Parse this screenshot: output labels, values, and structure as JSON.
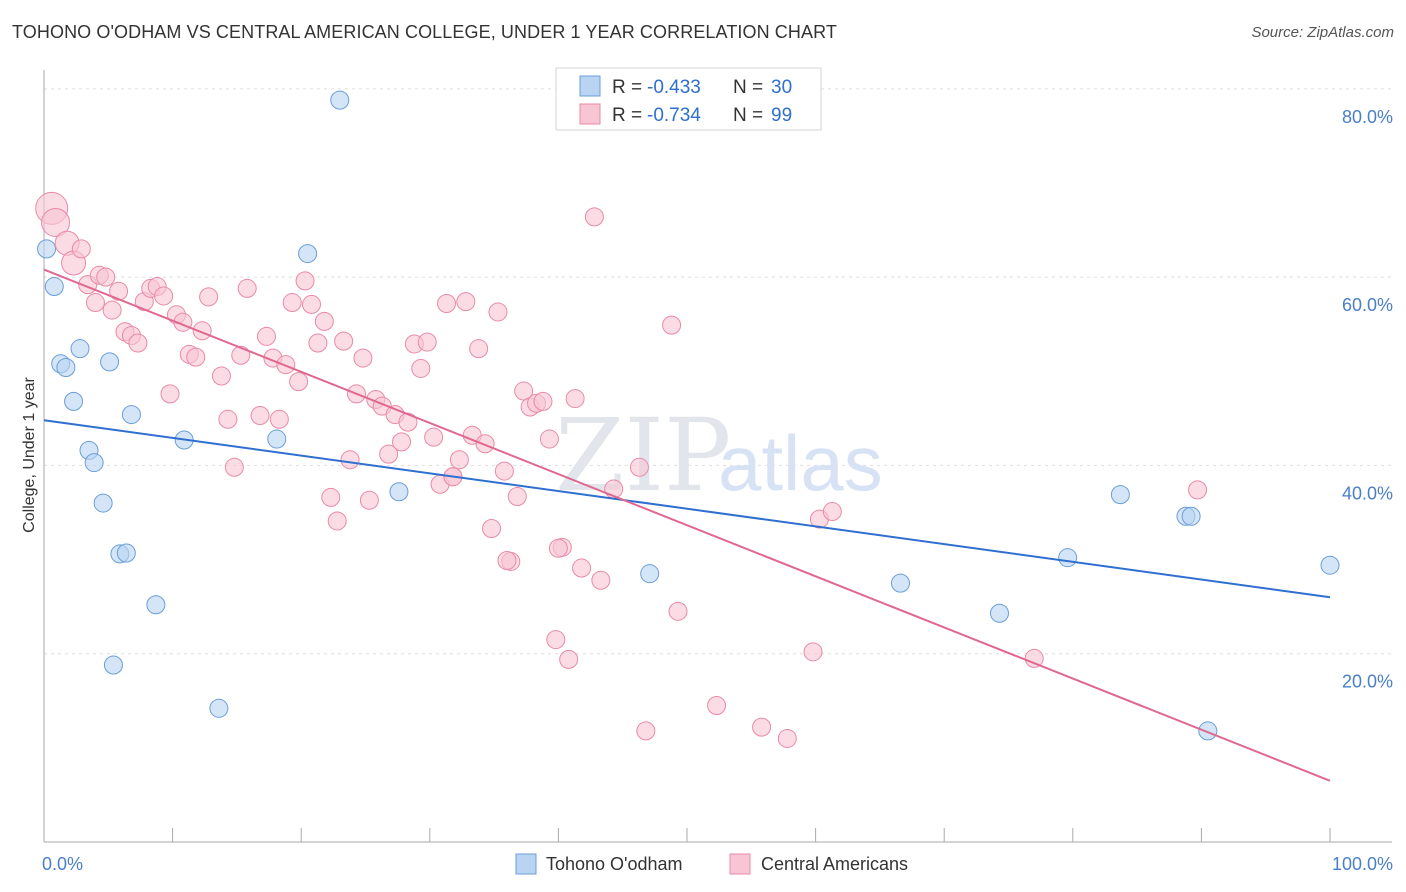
{
  "header": {
    "title": "TOHONO O'ODHAM VS CENTRAL AMERICAN COLLEGE, UNDER 1 YEAR CORRELATION CHART",
    "source": "Source: ZipAtlas.com"
  },
  "watermark": {
    "zip": "ZIP",
    "atlas": "atlas"
  },
  "legend": {
    "items": [
      {
        "r_label": "R =",
        "r_value": "-0.433",
        "n_label": "N =",
        "n_value": "30",
        "color": "#b9d3f3"
      },
      {
        "r_label": "R =",
        "r_value": "-0.734",
        "n_label": "N =",
        "n_value": "99",
        "color": "#f8c5d4"
      }
    ]
  },
  "chart_data": {
    "type": "scatter",
    "title": "TOHONO O'ODHAM VS CENTRAL AMERICAN COLLEGE, UNDER 1 YEAR CORRELATION CHART",
    "xlabel": "",
    "ylabel": "College, Under 1 year",
    "xlim": [
      0,
      100
    ],
    "ylim": [
      0,
      82
    ],
    "x_tick_labels": [
      "0.0%",
      "100.0%"
    ],
    "y_ticks": [
      {
        "value": 20,
        "label": "20.0%"
      },
      {
        "value": 40,
        "label": "40.0%"
      },
      {
        "value": 60,
        "label": "60.0%"
      },
      {
        "value": 80,
        "label": "80.0%"
      }
    ],
    "grid": true,
    "legend_position": "top-center",
    "series": [
      {
        "name": "Tohono O'odham",
        "color": "#b9d3f3",
        "stroke": "#6a9ed8",
        "line_color": "#2f6fd0",
        "trend": {
          "x": [
            0,
            100
          ],
          "y": [
            44.8,
            26.0
          ]
        },
        "points": [
          {
            "x": 0.2,
            "y": 63.0
          },
          {
            "x": 0.8,
            "y": 59.0
          },
          {
            "x": 1.3,
            "y": 50.8
          },
          {
            "x": 1.7,
            "y": 50.4
          },
          {
            "x": 2.3,
            "y": 46.8
          },
          {
            "x": 2.8,
            "y": 52.4
          },
          {
            "x": 3.5,
            "y": 41.6
          },
          {
            "x": 3.9,
            "y": 40.3
          },
          {
            "x": 4.6,
            "y": 36.0
          },
          {
            "x": 5.1,
            "y": 51.0
          },
          {
            "x": 5.4,
            "y": 18.8
          },
          {
            "x": 5.9,
            "y": 30.6
          },
          {
            "x": 6.4,
            "y": 30.7
          },
          {
            "x": 6.8,
            "y": 45.4
          },
          {
            "x": 8.7,
            "y": 25.2
          },
          {
            "x": 10.9,
            "y": 42.7
          },
          {
            "x": 13.6,
            "y": 14.2
          },
          {
            "x": 18.1,
            "y": 42.8
          },
          {
            "x": 20.5,
            "y": 62.5
          },
          {
            "x": 23.0,
            "y": 78.8
          },
          {
            "x": 27.6,
            "y": 37.2
          },
          {
            "x": 47.1,
            "y": 28.5
          },
          {
            "x": 66.6,
            "y": 27.5
          },
          {
            "x": 74.3,
            "y": 24.3
          },
          {
            "x": 79.6,
            "y": 30.2
          },
          {
            "x": 83.7,
            "y": 36.9
          },
          {
            "x": 88.8,
            "y": 34.6
          },
          {
            "x": 89.2,
            "y": 34.6
          },
          {
            "x": 90.5,
            "y": 11.8
          },
          {
            "x": 100.0,
            "y": 29.4
          }
        ]
      },
      {
        "name": "Central Americans",
        "color": "#f8c5d4",
        "stroke": "#e98aa8",
        "line_color": "#e06890",
        "trend": {
          "x": [
            0,
            100
          ],
          "y": [
            60.8,
            6.5
          ]
        },
        "points": [
          {
            "x": 0.6,
            "y": 67.3,
            "r": 16
          },
          {
            "x": 0.9,
            "y": 65.8,
            "r": 14
          },
          {
            "x": 1.8,
            "y": 63.6,
            "r": 12
          },
          {
            "x": 2.3,
            "y": 61.5,
            "r": 12
          },
          {
            "x": 2.9,
            "y": 63.0
          },
          {
            "x": 3.4,
            "y": 59.2
          },
          {
            "x": 4.0,
            "y": 57.3
          },
          {
            "x": 4.3,
            "y": 60.2
          },
          {
            "x": 4.8,
            "y": 60.0
          },
          {
            "x": 5.3,
            "y": 56.5
          },
          {
            "x": 5.8,
            "y": 58.5
          },
          {
            "x": 6.3,
            "y": 54.2
          },
          {
            "x": 6.8,
            "y": 53.8
          },
          {
            "x": 7.3,
            "y": 53.0
          },
          {
            "x": 7.8,
            "y": 57.4
          },
          {
            "x": 8.3,
            "y": 58.8
          },
          {
            "x": 8.8,
            "y": 59.0
          },
          {
            "x": 9.3,
            "y": 58.0
          },
          {
            "x": 9.8,
            "y": 47.6
          },
          {
            "x": 10.3,
            "y": 56.0
          },
          {
            "x": 10.8,
            "y": 55.2
          },
          {
            "x": 11.3,
            "y": 51.8
          },
          {
            "x": 11.8,
            "y": 51.5
          },
          {
            "x": 12.3,
            "y": 54.3
          },
          {
            "x": 12.8,
            "y": 57.9
          },
          {
            "x": 13.8,
            "y": 49.5
          },
          {
            "x": 14.3,
            "y": 44.9
          },
          {
            "x": 14.8,
            "y": 39.8
          },
          {
            "x": 15.3,
            "y": 51.7
          },
          {
            "x": 15.8,
            "y": 58.8
          },
          {
            "x": 16.8,
            "y": 45.3
          },
          {
            "x": 17.3,
            "y": 53.7
          },
          {
            "x": 17.8,
            "y": 51.4
          },
          {
            "x": 18.3,
            "y": 44.9
          },
          {
            "x": 18.8,
            "y": 50.7
          },
          {
            "x": 19.3,
            "y": 57.3
          },
          {
            "x": 19.8,
            "y": 48.9
          },
          {
            "x": 20.3,
            "y": 59.6
          },
          {
            "x": 20.8,
            "y": 57.1
          },
          {
            "x": 21.3,
            "y": 53.0
          },
          {
            "x": 21.8,
            "y": 55.3
          },
          {
            "x": 22.3,
            "y": 36.6
          },
          {
            "x": 22.8,
            "y": 34.1
          },
          {
            "x": 23.3,
            "y": 53.2
          },
          {
            "x": 23.8,
            "y": 40.6
          },
          {
            "x": 24.3,
            "y": 47.6
          },
          {
            "x": 24.8,
            "y": 51.4
          },
          {
            "x": 25.3,
            "y": 36.3
          },
          {
            "x": 25.8,
            "y": 47.0
          },
          {
            "x": 26.3,
            "y": 46.3
          },
          {
            "x": 26.8,
            "y": 41.2
          },
          {
            "x": 27.3,
            "y": 45.4
          },
          {
            "x": 27.8,
            "y": 42.5
          },
          {
            "x": 28.3,
            "y": 44.6
          },
          {
            "x": 28.8,
            "y": 52.9
          },
          {
            "x": 29.3,
            "y": 50.3
          },
          {
            "x": 29.8,
            "y": 53.1
          },
          {
            "x": 30.3,
            "y": 43.0
          },
          {
            "x": 30.8,
            "y": 38.0
          },
          {
            "x": 31.3,
            "y": 57.2
          },
          {
            "x": 31.8,
            "y": 38.8
          },
          {
            "x": 32.3,
            "y": 40.6
          },
          {
            "x": 32.8,
            "y": 57.4
          },
          {
            "x": 33.3,
            "y": 43.2
          },
          {
            "x": 33.8,
            "y": 52.4
          },
          {
            "x": 34.3,
            "y": 42.3
          },
          {
            "x": 34.8,
            "y": 33.3
          },
          {
            "x": 35.3,
            "y": 56.3
          },
          {
            "x": 35.8,
            "y": 39.4
          },
          {
            "x": 36.3,
            "y": 29.8
          },
          {
            "x": 36.8,
            "y": 36.7
          },
          {
            "x": 37.3,
            "y": 47.9
          },
          {
            "x": 37.8,
            "y": 46.2
          },
          {
            "x": 38.3,
            "y": 46.6
          },
          {
            "x": 38.8,
            "y": 46.8
          },
          {
            "x": 39.3,
            "y": 42.8
          },
          {
            "x": 39.8,
            "y": 21.5
          },
          {
            "x": 40.3,
            "y": 31.3
          },
          {
            "x": 40.8,
            "y": 19.4
          },
          {
            "x": 41.3,
            "y": 47.1
          },
          {
            "x": 41.8,
            "y": 29.1
          },
          {
            "x": 42.8,
            "y": 66.4
          },
          {
            "x": 43.3,
            "y": 27.8
          },
          {
            "x": 44.3,
            "y": 37.5
          },
          {
            "x": 46.3,
            "y": 39.8
          },
          {
            "x": 46.8,
            "y": 11.8
          },
          {
            "x": 48.8,
            "y": 54.9
          },
          {
            "x": 49.3,
            "y": 24.5
          },
          {
            "x": 52.3,
            "y": 14.5
          },
          {
            "x": 55.8,
            "y": 12.2
          },
          {
            "x": 57.8,
            "y": 11.0
          },
          {
            "x": 59.8,
            "y": 20.2
          },
          {
            "x": 60.3,
            "y": 34.3
          },
          {
            "x": 61.3,
            "y": 35.1
          },
          {
            "x": 77.0,
            "y": 19.5
          },
          {
            "x": 89.7,
            "y": 37.4
          },
          {
            "x": 40.0,
            "y": 31.2
          },
          {
            "x": 36.0,
            "y": 29.9
          },
          {
            "x": 31.8,
            "y": 38.8
          }
        ]
      }
    ]
  }
}
